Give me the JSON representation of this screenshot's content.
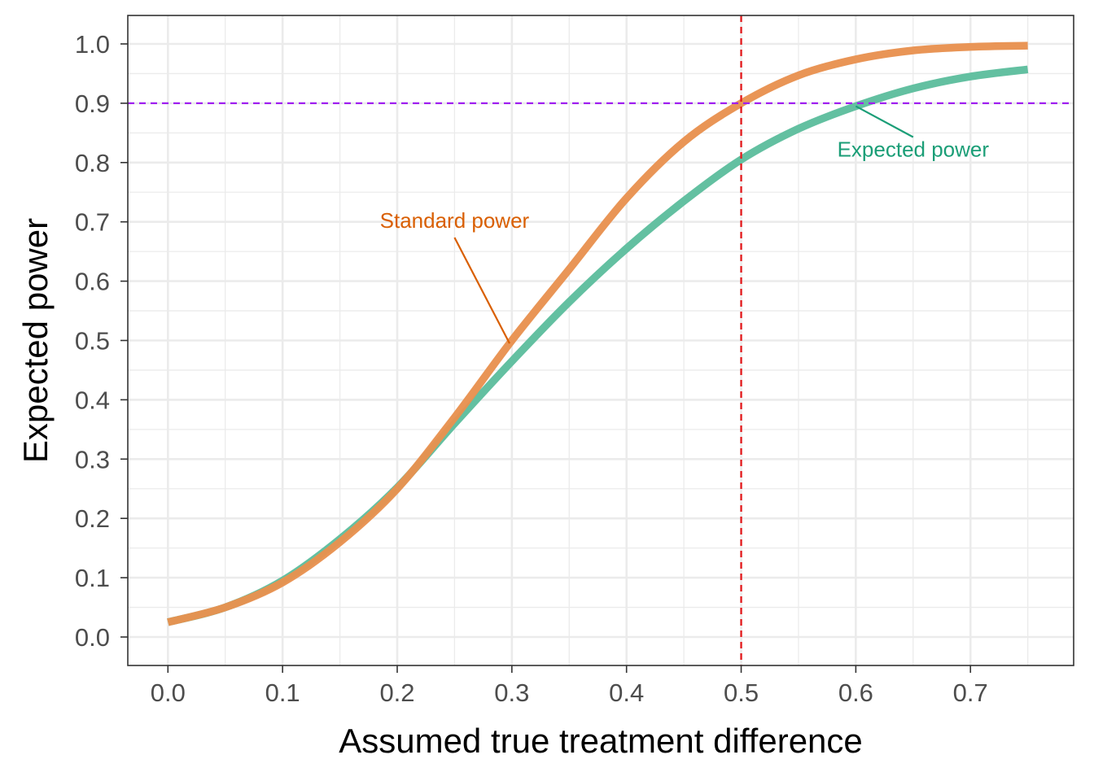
{
  "chart_data": {
    "type": "line",
    "title": "",
    "xlabel": "Assumed true treatment difference",
    "ylabel": "Expected power",
    "xlim": [
      -0.035,
      0.79
    ],
    "ylim": [
      -0.048,
      1.048
    ],
    "x_ticks": [
      0.0,
      0.1,
      0.2,
      0.3,
      0.4,
      0.5,
      0.6,
      0.7
    ],
    "x_tick_labels": [
      "0.0",
      "0.1",
      "0.2",
      "0.3",
      "0.4",
      "0.5",
      "0.6",
      "0.7"
    ],
    "x_minor_ticks": [
      0.05,
      0.15,
      0.25,
      0.35,
      0.45,
      0.55,
      0.65,
      0.75
    ],
    "y_ticks": [
      0.0,
      0.1,
      0.2,
      0.3,
      0.4,
      0.5,
      0.6,
      0.7,
      0.8,
      0.9,
      1.0
    ],
    "y_tick_labels": [
      "0.0",
      "0.1",
      "0.2",
      "0.3",
      "0.4",
      "0.5",
      "0.6",
      "0.7",
      "0.8",
      "0.9",
      "1.0"
    ],
    "y_minor_ticks": [
      0.05,
      0.15,
      0.25,
      0.35,
      0.45,
      0.55,
      0.65,
      0.75,
      0.85,
      0.95
    ],
    "grid": true,
    "legend": "none",
    "x": [
      0.0,
      0.05,
      0.1,
      0.15,
      0.2,
      0.25,
      0.3,
      0.35,
      0.4,
      0.45,
      0.5,
      0.55,
      0.6,
      0.65,
      0.7,
      0.75
    ],
    "series": [
      {
        "name": "Standard power",
        "color": "#E8914F",
        "values": [
          0.025,
          0.05,
          0.092,
          0.16,
          0.25,
          0.37,
          0.5,
          0.62,
          0.74,
          0.835,
          0.9,
          0.947,
          0.974,
          0.989,
          0.995,
          0.997
        ]
      },
      {
        "name": "Expected power",
        "color": "#5DBD9D",
        "values": [
          0.025,
          0.05,
          0.095,
          0.165,
          0.252,
          0.36,
          0.465,
          0.565,
          0.655,
          0.735,
          0.805,
          0.857,
          0.895,
          0.925,
          0.945,
          0.957
        ]
      }
    ],
    "reference_lines": [
      {
        "orientation": "horizontal",
        "value": 0.9,
        "color": "#A020F0",
        "style": "dashed"
      },
      {
        "orientation": "vertical",
        "value": 0.5,
        "color": "#E41A1C",
        "style": "dashed"
      }
    ],
    "annotations": [
      {
        "text": "Standard power",
        "color": "#D95F02",
        "text_x": 0.25,
        "text_y": 0.69,
        "point_x": 0.298,
        "point_y": 0.495
      },
      {
        "text": "Expected power",
        "color": "#1B9E77",
        "text_x": 0.65,
        "text_y": 0.81,
        "point_x": 0.6,
        "point_y": 0.895
      }
    ]
  }
}
